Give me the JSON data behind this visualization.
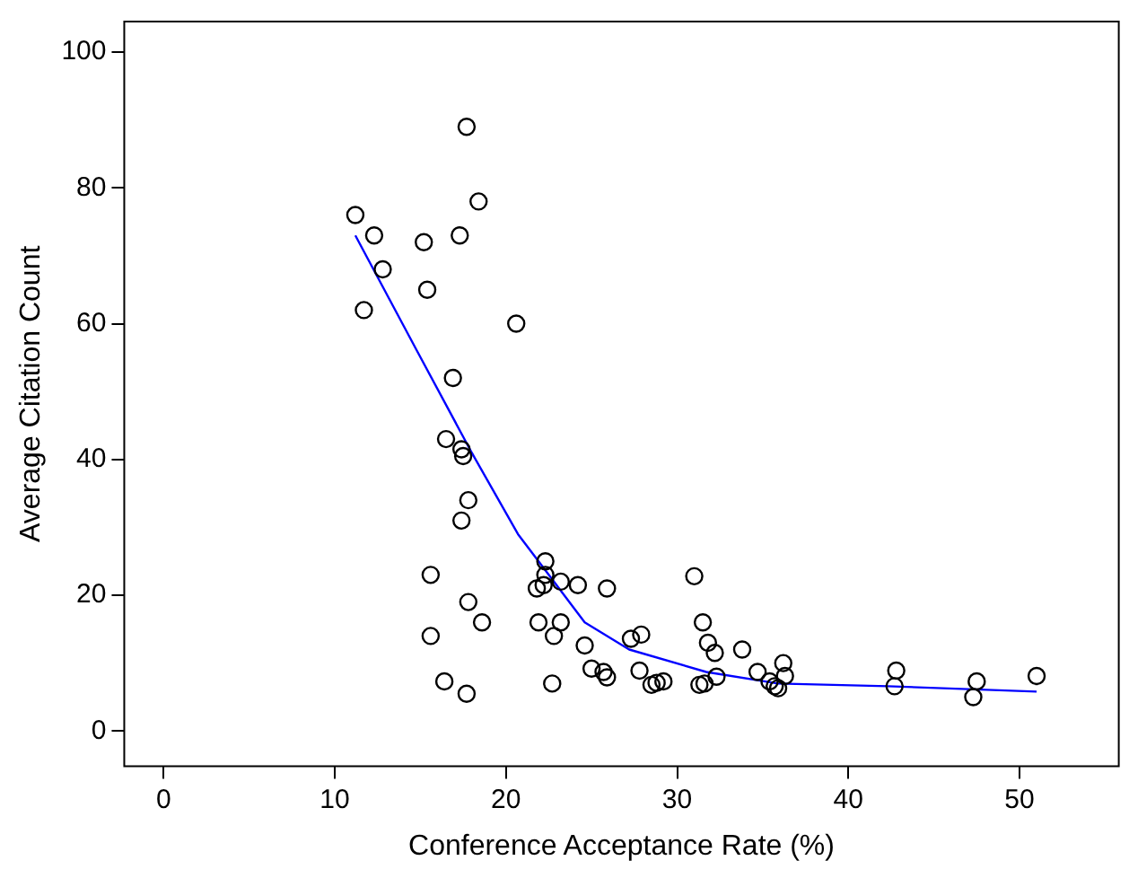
{
  "chart_data": {
    "type": "scatter",
    "xlabel": "Conference Acceptance Rate (%)",
    "ylabel": "Average Citation Count",
    "xlim": [
      -2.3,
      55.8
    ],
    "ylim": [
      -5.2,
      104.5
    ],
    "xticks": [
      0,
      10,
      20,
      30,
      40,
      50
    ],
    "yticks": [
      0,
      20,
      40,
      60,
      80,
      100
    ],
    "grid": false,
    "legend": false,
    "marker": "circle",
    "series": [
      {
        "color": "#000000",
        "x": [
          11.2,
          12.3,
          12.8,
          11.7,
          15.2,
          15.4,
          17.7,
          18.4,
          17.3,
          20.6,
          16.9,
          16.5,
          17.4,
          17.5,
          17.8,
          17.4,
          15.6,
          17.8,
          18.6,
          15.6,
          16.4,
          17.7,
          22.3,
          22.3,
          22.2,
          21.8,
          23.2,
          24.2,
          21.9,
          23.2,
          22.8,
          22.7,
          25.9,
          24.6,
          25,
          25.7,
          25.9,
          27.3,
          27.9,
          27.8,
          28.5,
          28.8,
          29.2,
          31,
          31.5,
          31.8,
          32.2,
          31.3,
          31.6,
          32.3,
          33.8,
          34.7,
          35.4,
          35.7,
          35.9,
          36.2,
          36.3,
          42.8,
          42.7,
          47.5,
          47.3,
          51
        ],
        "values": [
          76,
          73,
          68,
          62,
          72,
          65,
          89,
          78,
          73,
          60,
          52,
          43,
          41.5,
          40.5,
          34,
          31,
          23,
          19,
          16,
          14,
          7.3,
          5.5,
          25,
          23,
          21.5,
          21,
          22,
          21.5,
          16,
          16,
          14,
          7,
          21,
          12.6,
          9.2,
          8.7,
          7.9,
          13.6,
          14.2,
          8.9,
          6.8,
          7.1,
          7.3,
          22.8,
          16,
          13,
          11.5,
          6.8,
          7,
          8,
          12,
          8.7,
          7.3,
          6.6,
          6.3,
          10,
          8.1,
          8.9,
          6.6,
          7.3,
          5,
          8.1
        ]
      },
      {
        "type": "line",
        "color": "#0000ff",
        "marker": "none",
        "line_style": "solid",
        "x": [
          11.2,
          14.8,
          18,
          20.7,
          22.5,
          24.6,
          27.2,
          31.7,
          35.9,
          42.3,
          51
        ],
        "values": [
          73,
          56,
          41,
          29,
          23,
          16,
          12,
          8.7,
          7,
          6.6,
          5.8
        ]
      }
    ]
  }
}
